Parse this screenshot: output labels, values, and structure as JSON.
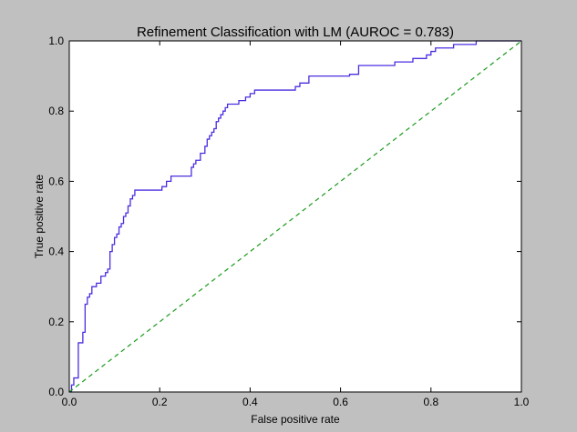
{
  "chart_data": {
    "type": "line",
    "title": "Refinement Classification with LM (AUROC = 0.783)",
    "xlabel": "False positive rate",
    "ylabel": "True positive rate",
    "xlim": [
      0,
      1
    ],
    "ylim": [
      0,
      1
    ],
    "xticks": [
      "0.0",
      "0.2",
      "0.4",
      "0.6",
      "0.8",
      "1.0"
    ],
    "yticks": [
      "0.0",
      "0.2",
      "0.4",
      "0.6",
      "0.8",
      "1.0"
    ],
    "grid": false,
    "legend": "none",
    "series": [
      {
        "style": "solid",
        "color": "#4a2fe0",
        "x": [
          0,
          0.005,
          0.005,
          0.01,
          0.01,
          0.02,
          0.02,
          0.03,
          0.03,
          0.035,
          0.035,
          0.04,
          0.04,
          0.045,
          0.045,
          0.05,
          0.05,
          0.06,
          0.06,
          0.07,
          0.07,
          0.08,
          0.08,
          0.085,
          0.085,
          0.09,
          0.09,
          0.095,
          0.095,
          0.1,
          0.1,
          0.105,
          0.105,
          0.11,
          0.11,
          0.115,
          0.115,
          0.12,
          0.12,
          0.125,
          0.125,
          0.13,
          0.13,
          0.135,
          0.135,
          0.14,
          0.14,
          0.145,
          0.145,
          0.205,
          0.205,
          0.215,
          0.215,
          0.225,
          0.225,
          0.27,
          0.27,
          0.275,
          0.275,
          0.28,
          0.28,
          0.29,
          0.29,
          0.3,
          0.3,
          0.305,
          0.305,
          0.31,
          0.31,
          0.315,
          0.315,
          0.32,
          0.32,
          0.325,
          0.325,
          0.33,
          0.33,
          0.335,
          0.335,
          0.34,
          0.34,
          0.345,
          0.345,
          0.35,
          0.35,
          0.375,
          0.375,
          0.39,
          0.39,
          0.4,
          0.4,
          0.41,
          0.41,
          0.5,
          0.5,
          0.51,
          0.51,
          0.53,
          0.53,
          0.62,
          0.62,
          0.64,
          0.64,
          0.72,
          0.72,
          0.76,
          0.76,
          0.79,
          0.79,
          0.8,
          0.8,
          0.81,
          0.81,
          0.85,
          0.85,
          0.9,
          0.9,
          1.0
        ],
        "y": [
          0,
          0,
          0.02,
          0.02,
          0.04,
          0.04,
          0.14,
          0.14,
          0.17,
          0.17,
          0.25,
          0.25,
          0.27,
          0.27,
          0.28,
          0.28,
          0.3,
          0.3,
          0.31,
          0.31,
          0.33,
          0.33,
          0.34,
          0.34,
          0.35,
          0.35,
          0.4,
          0.4,
          0.42,
          0.42,
          0.44,
          0.44,
          0.45,
          0.45,
          0.47,
          0.47,
          0.48,
          0.48,
          0.5,
          0.5,
          0.51,
          0.51,
          0.53,
          0.53,
          0.55,
          0.55,
          0.56,
          0.56,
          0.575,
          0.575,
          0.585,
          0.585,
          0.6,
          0.6,
          0.615,
          0.615,
          0.64,
          0.64,
          0.65,
          0.65,
          0.66,
          0.66,
          0.68,
          0.68,
          0.7,
          0.7,
          0.72,
          0.72,
          0.73,
          0.73,
          0.74,
          0.74,
          0.75,
          0.75,
          0.77,
          0.77,
          0.78,
          0.78,
          0.79,
          0.79,
          0.8,
          0.8,
          0.81,
          0.81,
          0.82,
          0.82,
          0.83,
          0.83,
          0.84,
          0.84,
          0.85,
          0.85,
          0.86,
          0.86,
          0.87,
          0.87,
          0.88,
          0.88,
          0.9,
          0.9,
          0.905,
          0.905,
          0.93,
          0.93,
          0.94,
          0.94,
          0.95,
          0.95,
          0.96,
          0.96,
          0.97,
          0.97,
          0.98,
          0.98,
          0.99,
          0.99,
          1.0,
          1.0
        ]
      },
      {
        "style": "dashed",
        "color": "#1a9a1a",
        "x": [
          0,
          1
        ],
        "y": [
          0,
          1
        ]
      }
    ]
  }
}
